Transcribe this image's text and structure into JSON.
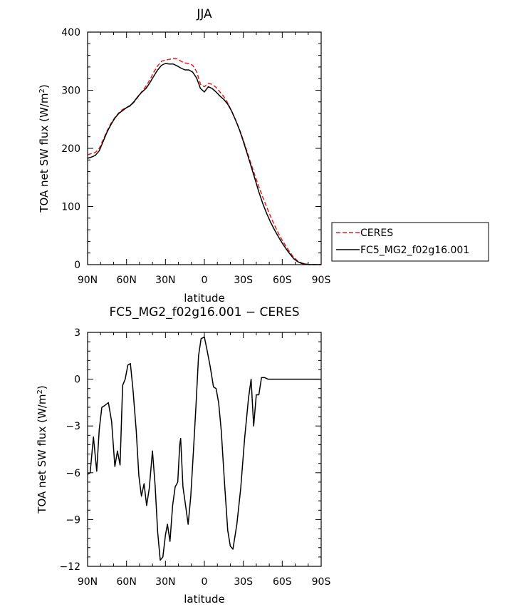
{
  "chart_data": [
    {
      "type": "line",
      "title": "JJA",
      "xlabel": "latitude",
      "ylabel": "TOA net SW flux (W/m",
      "ylabel_sup": "2",
      "ylabel_close": ")",
      "xlim": [
        90,
        -90
      ],
      "ylim": [
        0,
        400
      ],
      "x_ticks": [
        90,
        60,
        30,
        0,
        -30,
        -60,
        -90
      ],
      "x_tick_labels": [
        "90N",
        "60N",
        "30N",
        "0",
        "30S",
        "60S",
        "90S"
      ],
      "y_ticks": [
        0,
        100,
        200,
        300,
        400
      ],
      "y_tick_labels": [
        "0",
        "100",
        "200",
        "300",
        "400"
      ],
      "legend_position": "right",
      "series": [
        {
          "name": "CERES",
          "color": "#e02020",
          "dash": "dashed",
          "points": [
            [
              90,
              189
            ],
            [
              87,
              191
            ],
            [
              84,
              193
            ],
            [
              81,
              200
            ],
            [
              78,
              215
            ],
            [
              75,
              230
            ],
            [
              72,
              243
            ],
            [
              69,
              253
            ],
            [
              66,
              261
            ],
            [
              63,
              267
            ],
            [
              60,
              270
            ],
            [
              57,
              273
            ],
            [
              54,
              280
            ],
            [
              51,
              289
            ],
            [
              48,
              298
            ],
            [
              45,
              307
            ],
            [
              42,
              318
            ],
            [
              39,
              331
            ],
            [
              36,
              342
            ],
            [
              33,
              350
            ],
            [
              30,
              352
            ],
            [
              27,
              353
            ],
            [
              24,
              355
            ],
            [
              21,
              354
            ],
            [
              18,
              350
            ],
            [
              15,
              347
            ],
            [
              12,
              346
            ],
            [
              9,
              343
            ],
            [
              6,
              332
            ],
            [
              3,
              310
            ],
            [
              0,
              306
            ],
            [
              -3,
              312
            ],
            [
              -6,
              310
            ],
            [
              -9,
              305
            ],
            [
              -12,
              297
            ],
            [
              -15,
              289
            ],
            [
              -18,
              278
            ],
            [
              -21,
              264
            ],
            [
              -24,
              249
            ],
            [
              -27,
              233
            ],
            [
              -30,
              214
            ],
            [
              -33,
              194
            ],
            [
              -36,
              173
            ],
            [
              -39,
              153
            ],
            [
              -42,
              134
            ],
            [
              -45,
              116
            ],
            [
              -48,
              99
            ],
            [
              -51,
              83
            ],
            [
              -54,
              68
            ],
            [
              -57,
              54
            ],
            [
              -60,
              42
            ],
            [
              -63,
              31
            ],
            [
              -66,
              21
            ],
            [
              -69,
              12
            ],
            [
              -72,
              6
            ],
            [
              -75,
              3
            ],
            [
              -78,
              1
            ],
            [
              -81,
              0
            ],
            [
              -84,
              0
            ],
            [
              -87,
              0
            ],
            [
              -90,
              0
            ]
          ]
        },
        {
          "name": "FC5_MG2_f02g16.001",
          "color": "#000000",
          "dash": "solid",
          "points": [
            [
              90,
              183
            ],
            [
              87,
              185
            ],
            [
              84,
              188
            ],
            [
              81,
              196
            ],
            [
              78,
              212
            ],
            [
              75,
              228
            ],
            [
              72,
              241
            ],
            [
              69,
              252
            ],
            [
              66,
              260
            ],
            [
              63,
              265
            ],
            [
              60,
              270
            ],
            [
              57,
              274
            ],
            [
              54,
              281
            ],
            [
              51,
              290
            ],
            [
              48,
              297
            ],
            [
              45,
              303
            ],
            [
              42,
              313
            ],
            [
              39,
              324
            ],
            [
              36,
              335
            ],
            [
              33,
              343
            ],
            [
              30,
              346
            ],
            [
              27,
              345
            ],
            [
              24,
              345
            ],
            [
              21,
              342
            ],
            [
              18,
              338
            ],
            [
              15,
              335
            ],
            [
              12,
              335
            ],
            [
              9,
              331
            ],
            [
              6,
              321
            ],
            [
              3,
              303
            ],
            [
              0,
              297
            ],
            [
              -3,
              306
            ],
            [
              -6,
              303
            ],
            [
              -9,
              297
            ],
            [
              -12,
              290
            ],
            [
              -15,
              284
            ],
            [
              -18,
              276
            ],
            [
              -21,
              264
            ],
            [
              -24,
              249
            ],
            [
              -27,
              232
            ],
            [
              -30,
              212
            ],
            [
              -33,
              191
            ],
            [
              -36,
              169
            ],
            [
              -39,
              147
            ],
            [
              -42,
              125
            ],
            [
              -45,
              105
            ],
            [
              -48,
              88
            ],
            [
              -51,
              73
            ],
            [
              -54,
              60
            ],
            [
              -57,
              48
            ],
            [
              -60,
              37
            ],
            [
              -63,
              27
            ],
            [
              -66,
              18
            ],
            [
              -69,
              10
            ],
            [
              -72,
              5
            ],
            [
              -75,
              2
            ],
            [
              -78,
              1
            ],
            [
              -81,
              0
            ],
            [
              -84,
              0
            ],
            [
              -87,
              0
            ],
            [
              -90,
              0
            ]
          ]
        }
      ]
    },
    {
      "type": "line",
      "title": "FC5_MG2_f02g16.001 − CERES",
      "xlabel": "latitude",
      "ylabel": "TOA net SW flux (W/m",
      "ylabel_sup": "2",
      "ylabel_close": ")",
      "xlim": [
        90,
        -90
      ],
      "ylim": [
        -12,
        3
      ],
      "x_ticks": [
        90,
        60,
        30,
        0,
        -30,
        -60,
        -90
      ],
      "x_tick_labels": [
        "90N",
        "60N",
        "30N",
        "0",
        "30S",
        "60S",
        "90S"
      ],
      "y_ticks": [
        -12,
        -9,
        -6,
        -3,
        0,
        3
      ],
      "y_tick_labels": [
        "−12",
        "−9",
        "−6",
        "−3",
        "0",
        "3"
      ],
      "series": [
        {
          "name": "",
          "color": "#000000",
          "dash": "solid",
          "points": [
            [
              90,
              -6.1
            ],
            [
              88,
              -6.0
            ],
            [
              85.5,
              -3.7
            ],
            [
              83,
              -5.9
            ],
            [
              81,
              -3.2
            ],
            [
              79,
              -1.8
            ],
            [
              77,
              -1.7
            ],
            [
              74,
              -1.5
            ],
            [
              71.5,
              -2.7
            ],
            [
              69,
              -5.6
            ],
            [
              67,
              -4.6
            ],
            [
              65,
              -5.5
            ],
            [
              63,
              -0.4
            ],
            [
              61,
              0.0
            ],
            [
              59,
              0.9
            ],
            [
              57,
              1.0
            ],
            [
              55,
              -0.7
            ],
            [
              52.5,
              -3.3
            ],
            [
              50.5,
              -6.2
            ],
            [
              48.5,
              -7.5
            ],
            [
              46.5,
              -6.7
            ],
            [
              44.5,
              -8.1
            ],
            [
              42.5,
              -7.0
            ],
            [
              40,
              -4.6
            ],
            [
              38,
              -6.8
            ],
            [
              36,
              -9.8
            ],
            [
              34,
              -11.6
            ],
            [
              32,
              -11.4
            ],
            [
              30,
              -10.0
            ],
            [
              28.5,
              -9.3
            ],
            [
              26.5,
              -10.4
            ],
            [
              24.5,
              -8.1
            ],
            [
              22.5,
              -6.9
            ],
            [
              20.5,
              -6.6
            ],
            [
              19,
              -4.2
            ],
            [
              18.3,
              -3.8
            ],
            [
              16.5,
              -6.9
            ],
            [
              14.5,
              -8.1
            ],
            [
              12.5,
              -9.3
            ],
            [
              10.5,
              -7.5
            ],
            [
              8.5,
              -4.7
            ],
            [
              6.5,
              -1.7
            ],
            [
              4.5,
              1.5
            ],
            [
              2.5,
              2.6
            ],
            [
              0,
              2.7
            ],
            [
              -2,
              1.9
            ],
            [
              -4.5,
              0.8
            ],
            [
              -7,
              -0.5
            ],
            [
              -9,
              -0.6
            ],
            [
              -11,
              -1.5
            ],
            [
              -13,
              -3.3
            ],
            [
              -15.5,
              -6.6
            ],
            [
              -18,
              -9.7
            ],
            [
              -20,
              -10.7
            ],
            [
              -22,
              -10.9
            ],
            [
              -25,
              -9.3
            ],
            [
              -28,
              -7.0
            ],
            [
              -31,
              -3.8
            ],
            [
              -34,
              -1.2
            ],
            [
              -36,
              0.0
            ],
            [
              -38,
              -3.0
            ],
            [
              -40,
              -1.0
            ],
            [
              -42,
              -1.0
            ],
            [
              -44,
              0.1
            ],
            [
              -46.5,
              0.1
            ],
            [
              -49,
              0.0
            ],
            [
              -53,
              0.0
            ],
            [
              -58,
              0.0
            ],
            [
              -63,
              0.0
            ],
            [
              -70,
              0.0
            ],
            [
              -90,
              0.0
            ]
          ]
        }
      ]
    }
  ]
}
